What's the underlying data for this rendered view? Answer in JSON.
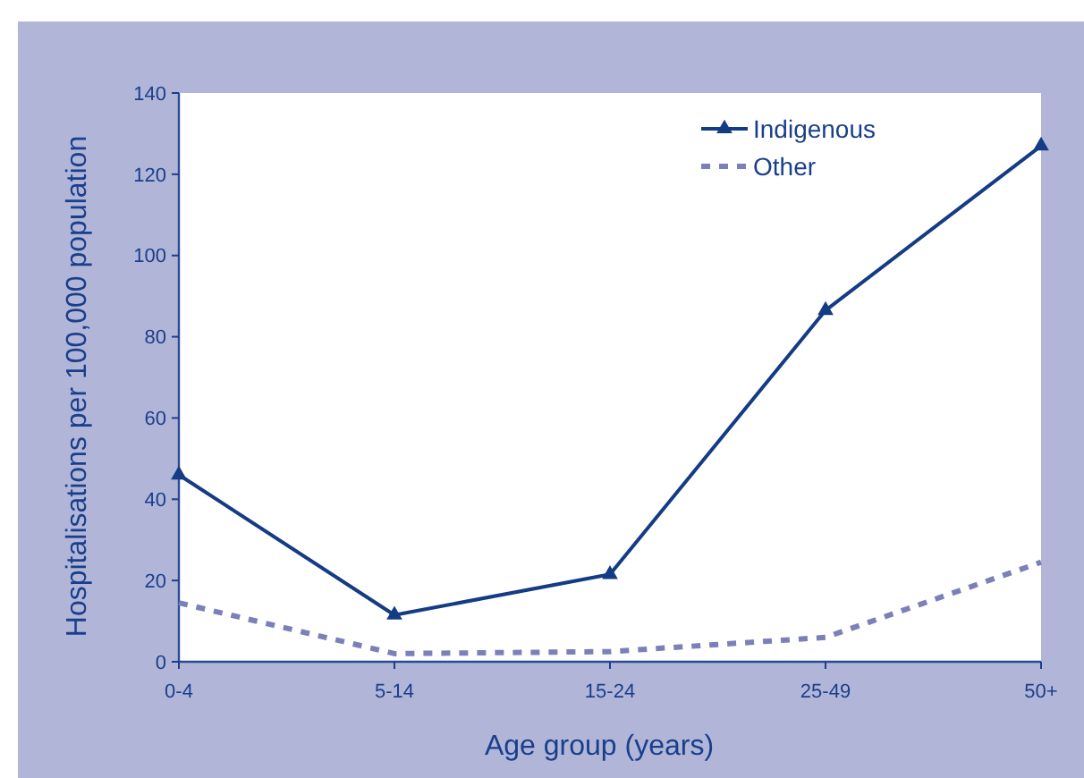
{
  "chart_data": {
    "type": "line",
    "xlabel": "Age group (years)",
    "ylabel": "Hospitalisations per 100,000 population",
    "categories": [
      "0-4",
      "5-14",
      "15-24",
      "25-49",
      "50+"
    ],
    "series": [
      {
        "name": "Indigenous",
        "color": "#143c85",
        "values": [
          46,
          11.5,
          21.5,
          86.5,
          127
        ],
        "marker": "triangle",
        "line_style": "solid"
      },
      {
        "name": "Other",
        "color": "#7d80b8",
        "values": [
          14.5,
          2,
          2.5,
          6,
          24.5
        ],
        "marker": "none",
        "line_style": "dashed"
      }
    ],
    "ylim": [
      0,
      140
    ],
    "yticks": [
      0,
      20,
      40,
      60,
      80,
      100,
      120,
      140
    ],
    "grid": false,
    "legend": "top right"
  }
}
